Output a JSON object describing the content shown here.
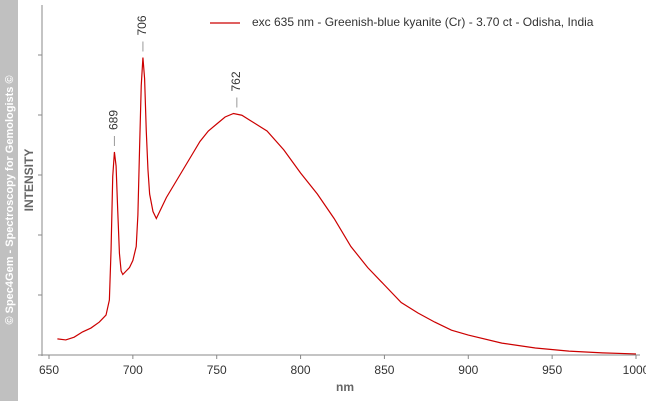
{
  "chart_data": {
    "type": "line",
    "watermark": "© Spec4Gem - Spectroscopy for Gemologists ©",
    "xlabel": "nm",
    "ylabel": "INTENSITY",
    "xlim": [
      650,
      1000
    ],
    "xticks": [
      650,
      700,
      750,
      800,
      850,
      900,
      950,
      1000
    ],
    "ylim": [
      0,
      100
    ],
    "legend": "top-right",
    "x": [
      655,
      660,
      665,
      670,
      675,
      680,
      684,
      686,
      687,
      688,
      689,
      690,
      691,
      692,
      693,
      694,
      696,
      698,
      700,
      702,
      703,
      704,
      705,
      706,
      707,
      708,
      709,
      710,
      712,
      714,
      716,
      720,
      725,
      730,
      735,
      740,
      745,
      750,
      755,
      760,
      765,
      770,
      780,
      790,
      800,
      810,
      820,
      830,
      840,
      850,
      860,
      870,
      880,
      890,
      900,
      920,
      940,
      960,
      980,
      1000
    ],
    "series": [
      {
        "name": "exc 635 nm - Greenish-blue kyanite (Cr) - 3.70 ct - Odisha, India",
        "color": "#cc0000",
        "values": [
          4.6,
          4.3,
          5.1,
          6.6,
          7.7,
          9.4,
          11.4,
          15.7,
          30,
          51,
          58,
          54,
          41,
          29,
          24,
          23,
          24,
          25,
          27,
          31,
          40,
          59,
          77,
          85,
          79,
          64,
          53,
          46,
          41,
          39,
          41,
          45,
          49,
          53,
          57,
          61,
          64,
          66,
          68,
          69,
          68.5,
          67,
          64,
          58.6,
          52,
          46,
          39,
          31,
          25,
          20,
          15,
          12,
          9.4,
          7.1,
          5.7,
          3.4,
          2,
          1.1,
          0.6,
          0.3
        ]
      }
    ],
    "annotations": [
      {
        "text": "689",
        "x": 689,
        "y": 58
      },
      {
        "text": "706",
        "x": 706,
        "y": 85
      },
      {
        "text": "762",
        "x": 762,
        "y": 69
      }
    ]
  }
}
